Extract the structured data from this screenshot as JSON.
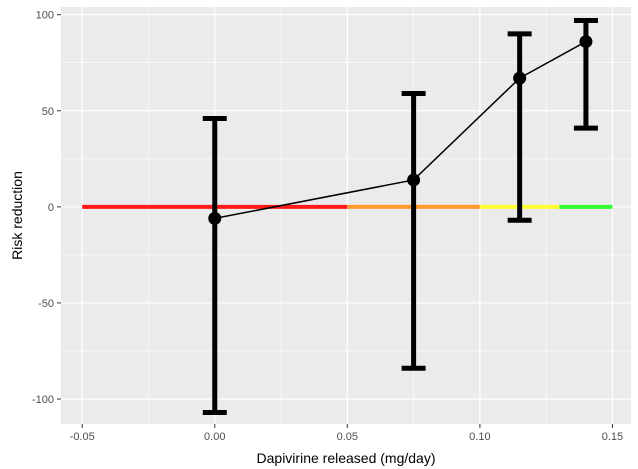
{
  "chart_data": {
    "type": "line",
    "title": "",
    "xlabel": "Dapivirine released (mg/day)",
    "ylabel": "Risk reduction",
    "xlim": [
      -0.058,
      0.157
    ],
    "ylim": [
      -113,
      104
    ],
    "x_ticks": [
      -0.05,
      0.0,
      0.05,
      0.1,
      0.15
    ],
    "x_tick_labels": [
      "-0.05",
      "0.00",
      "0.05",
      "0.10",
      "0.15"
    ],
    "y_ticks": [
      -100,
      -50,
      0,
      50,
      100
    ],
    "y_tick_labels": [
      "-100",
      "-50",
      "0",
      "50",
      "100"
    ],
    "grid": true,
    "background": "#ebebeb",
    "grid_color": "#ffffff",
    "points": [
      {
        "x": 0.0,
        "y": -6,
        "ymin": -107,
        "ymax": 46
      },
      {
        "x": 0.075,
        "y": 14,
        "ymin": -84,
        "ymax": 59
      },
      {
        "x": 0.115,
        "y": 67,
        "ymin": -7,
        "ymax": 90
      },
      {
        "x": 0.14,
        "y": 86,
        "ymin": 41,
        "ymax": 97
      }
    ],
    "reference_segments": [
      {
        "x_start": -0.05,
        "x_end": 0.05,
        "y": 0,
        "color": "#ff1a1a"
      },
      {
        "x_start": 0.05,
        "x_end": 0.1,
        "y": 0,
        "color": "#ff9a2e"
      },
      {
        "x_start": 0.1,
        "x_end": 0.13,
        "y": 0,
        "color": "#ffff33"
      },
      {
        "x_start": 0.13,
        "x_end": 0.15,
        "y": 0,
        "color": "#33ff33"
      }
    ],
    "line_color": "#000000",
    "errorbar_color": "#000000"
  }
}
